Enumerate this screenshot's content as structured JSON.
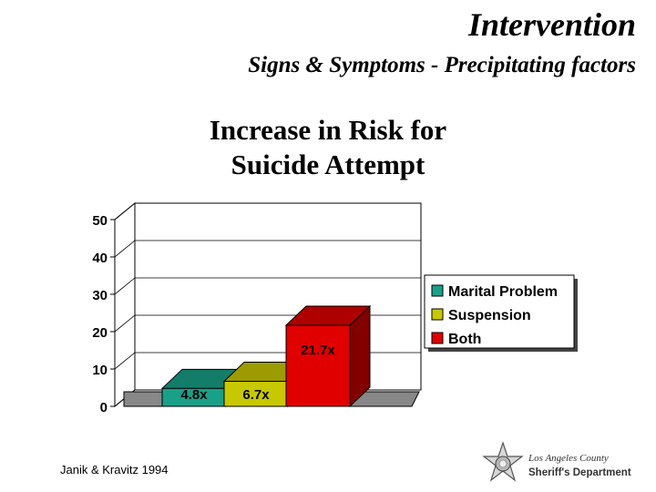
{
  "slide": {
    "title": "Intervention",
    "subtitle": "Signs & Symptoms - Precipitating factors",
    "citation": "Janik & Kravitz 1994"
  },
  "logo": {
    "line1": "Los Angeles County",
    "line2": "Sheriff's Department",
    "icon": "sheriff-star-badge-icon"
  },
  "chart_data": {
    "type": "bar",
    "title_lines": [
      "Increase in Risk for",
      "Suicide Attempt"
    ],
    "categories": [
      "Marital Problem",
      "Suspension",
      "Both"
    ],
    "values": [
      4.8,
      6.7,
      21.7
    ],
    "data_labels": [
      "4.8x",
      "6.7x",
      "21.7x"
    ],
    "colors": [
      "#1aa088",
      "#c8c800",
      "#e00000"
    ],
    "ylim": [
      0,
      50
    ],
    "yticks": [
      0,
      10,
      20,
      30,
      40,
      50
    ],
    "grid": true,
    "legend_position": "right",
    "style": "3d-bar"
  }
}
